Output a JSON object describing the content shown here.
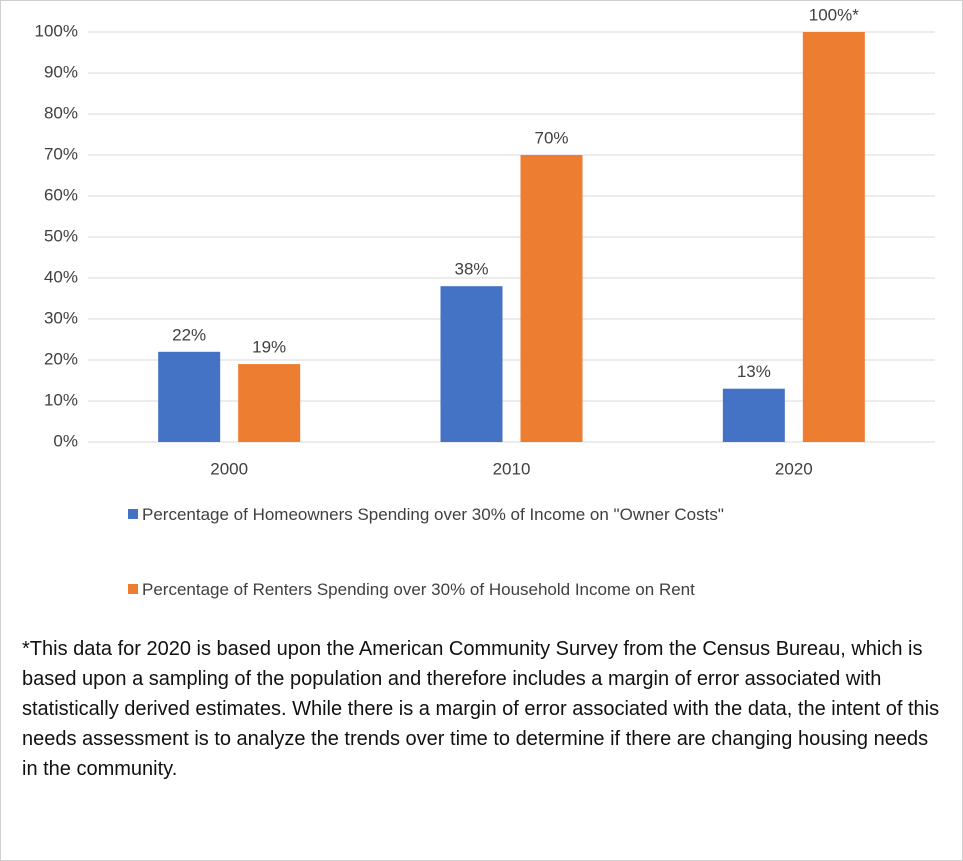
{
  "chart_data": {
    "type": "bar",
    "categories": [
      "2000",
      "2010",
      "2020"
    ],
    "series": [
      {
        "name": "Percentage of Homeowners Spending over 30% of Income on \"Owner Costs\"",
        "color": "#4472c4",
        "values": [
          22,
          38,
          13
        ],
        "value_labels": [
          "22%",
          "38%",
          "13%"
        ]
      },
      {
        "name": "Percentage of Renters Spending over 30% of  Household Income on Rent",
        "color": "#ed7d31",
        "values": [
          19,
          70,
          100
        ],
        "value_labels": [
          "19%",
          "70%",
          "100%*"
        ]
      }
    ],
    "ylim": [
      0,
      100
    ],
    "yticks": [
      {
        "value": 0,
        "label": "0%"
      },
      {
        "value": 10,
        "label": "10%"
      },
      {
        "value": 20,
        "label": "20%"
      },
      {
        "value": 30,
        "label": "30%"
      },
      {
        "value": 40,
        "label": "40%"
      },
      {
        "value": 50,
        "label": "50%"
      },
      {
        "value": 60,
        "label": "60%"
      },
      {
        "value": 70,
        "label": "70%"
      },
      {
        "value": 80,
        "label": "80%"
      },
      {
        "value": 90,
        "label": "90%"
      },
      {
        "value": 100,
        "label": "100%"
      }
    ],
    "grid": true,
    "legend": "bottom",
    "note": "*This data for 2020 is based upon the American Community Survey from the Census Bureau, which is based upon a sampling of the population and therefore includes a margin of error associated with statistically derived estimates.  While there is a margin of error associated with the data, the intent of this needs assessment is to analyze the trends over time to determine if there are changing housing needs in the community."
  }
}
